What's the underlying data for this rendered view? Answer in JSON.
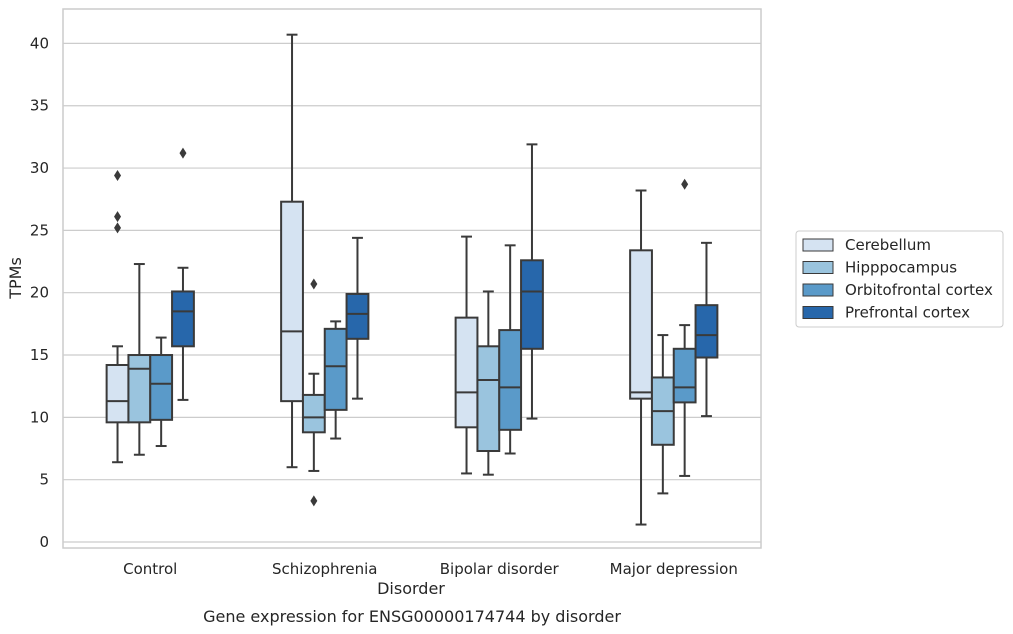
{
  "chart_data": {
    "type": "box",
    "xlabel": "Disorder",
    "ylabel": "TPMs",
    "caption": "Gene expression for ENSG00000174744 by disorder",
    "ylim": [
      -0.4,
      42.5
    ],
    "yticks": [
      0,
      5,
      10,
      15,
      20,
      25,
      30,
      35,
      40
    ],
    "grid": "horizontal",
    "legend_position": "right",
    "categories": [
      "Control",
      "Schizophrenia",
      "Bipolar disorder",
      "Major depression"
    ],
    "series": [
      {
        "name": "Cerebellum",
        "color": "#d5e3f2",
        "boxes": [
          {
            "whislo": 6.4,
            "q1": 9.6,
            "med": 11.3,
            "q3": 14.2,
            "whishi": 15.7,
            "fliers": [
              25.2,
              26.1,
              29.4
            ]
          },
          {
            "whislo": 6.0,
            "q1": 11.3,
            "med": 16.9,
            "q3": 27.3,
            "whishi": 40.7,
            "fliers": []
          },
          {
            "whislo": 5.5,
            "q1": 9.2,
            "med": 12.0,
            "q3": 18.0,
            "whishi": 24.5,
            "fliers": []
          },
          {
            "whislo": 1.4,
            "q1": 11.5,
            "med": 12.0,
            "q3": 23.4,
            "whishi": 28.2,
            "fliers": []
          }
        ]
      },
      {
        "name": "Hipppocampus",
        "color": "#9ac4de",
        "boxes": [
          {
            "whislo": 7.0,
            "q1": 9.6,
            "med": 13.9,
            "q3": 15.0,
            "whishi": 22.3,
            "fliers": []
          },
          {
            "whislo": 5.7,
            "q1": 8.8,
            "med": 10.0,
            "q3": 11.8,
            "whishi": 13.5,
            "fliers": [
              3.3,
              20.7
            ]
          },
          {
            "whislo": 5.4,
            "q1": 7.3,
            "med": 13.0,
            "q3": 15.7,
            "whishi": 20.1,
            "fliers": []
          },
          {
            "whislo": 3.9,
            "q1": 7.8,
            "med": 10.5,
            "q3": 13.2,
            "whishi": 16.6,
            "fliers": []
          }
        ]
      },
      {
        "name": "Orbitofrontal cortex",
        "color": "#5a9ac9",
        "boxes": [
          {
            "whislo": 7.7,
            "q1": 9.8,
            "med": 12.7,
            "q3": 15.0,
            "whishi": 16.4,
            "fliers": []
          },
          {
            "whislo": 8.3,
            "q1": 10.6,
            "med": 14.1,
            "q3": 17.1,
            "whishi": 17.7,
            "fliers": []
          },
          {
            "whislo": 7.1,
            "q1": 9.0,
            "med": 12.4,
            "q3": 17.0,
            "whishi": 23.8,
            "fliers": []
          },
          {
            "whislo": 5.3,
            "q1": 11.2,
            "med": 12.4,
            "q3": 15.5,
            "whishi": 17.4,
            "fliers": [
              28.7
            ]
          }
        ]
      },
      {
        "name": "Prefrontal cortex",
        "color": "#2767ab",
        "boxes": [
          {
            "whislo": 11.4,
            "q1": 15.7,
            "med": 18.5,
            "q3": 20.1,
            "whishi": 22.0,
            "fliers": [
              31.2
            ]
          },
          {
            "whislo": 11.5,
            "q1": 16.3,
            "med": 18.3,
            "q3": 19.9,
            "whishi": 24.4,
            "fliers": []
          },
          {
            "whislo": 9.9,
            "q1": 15.5,
            "med": 20.1,
            "q3": 22.6,
            "whishi": 31.9,
            "fliers": []
          },
          {
            "whislo": 10.1,
            "q1": 14.8,
            "med": 16.6,
            "q3": 19.0,
            "whishi": 24.0,
            "fliers": []
          }
        ]
      }
    ]
  }
}
